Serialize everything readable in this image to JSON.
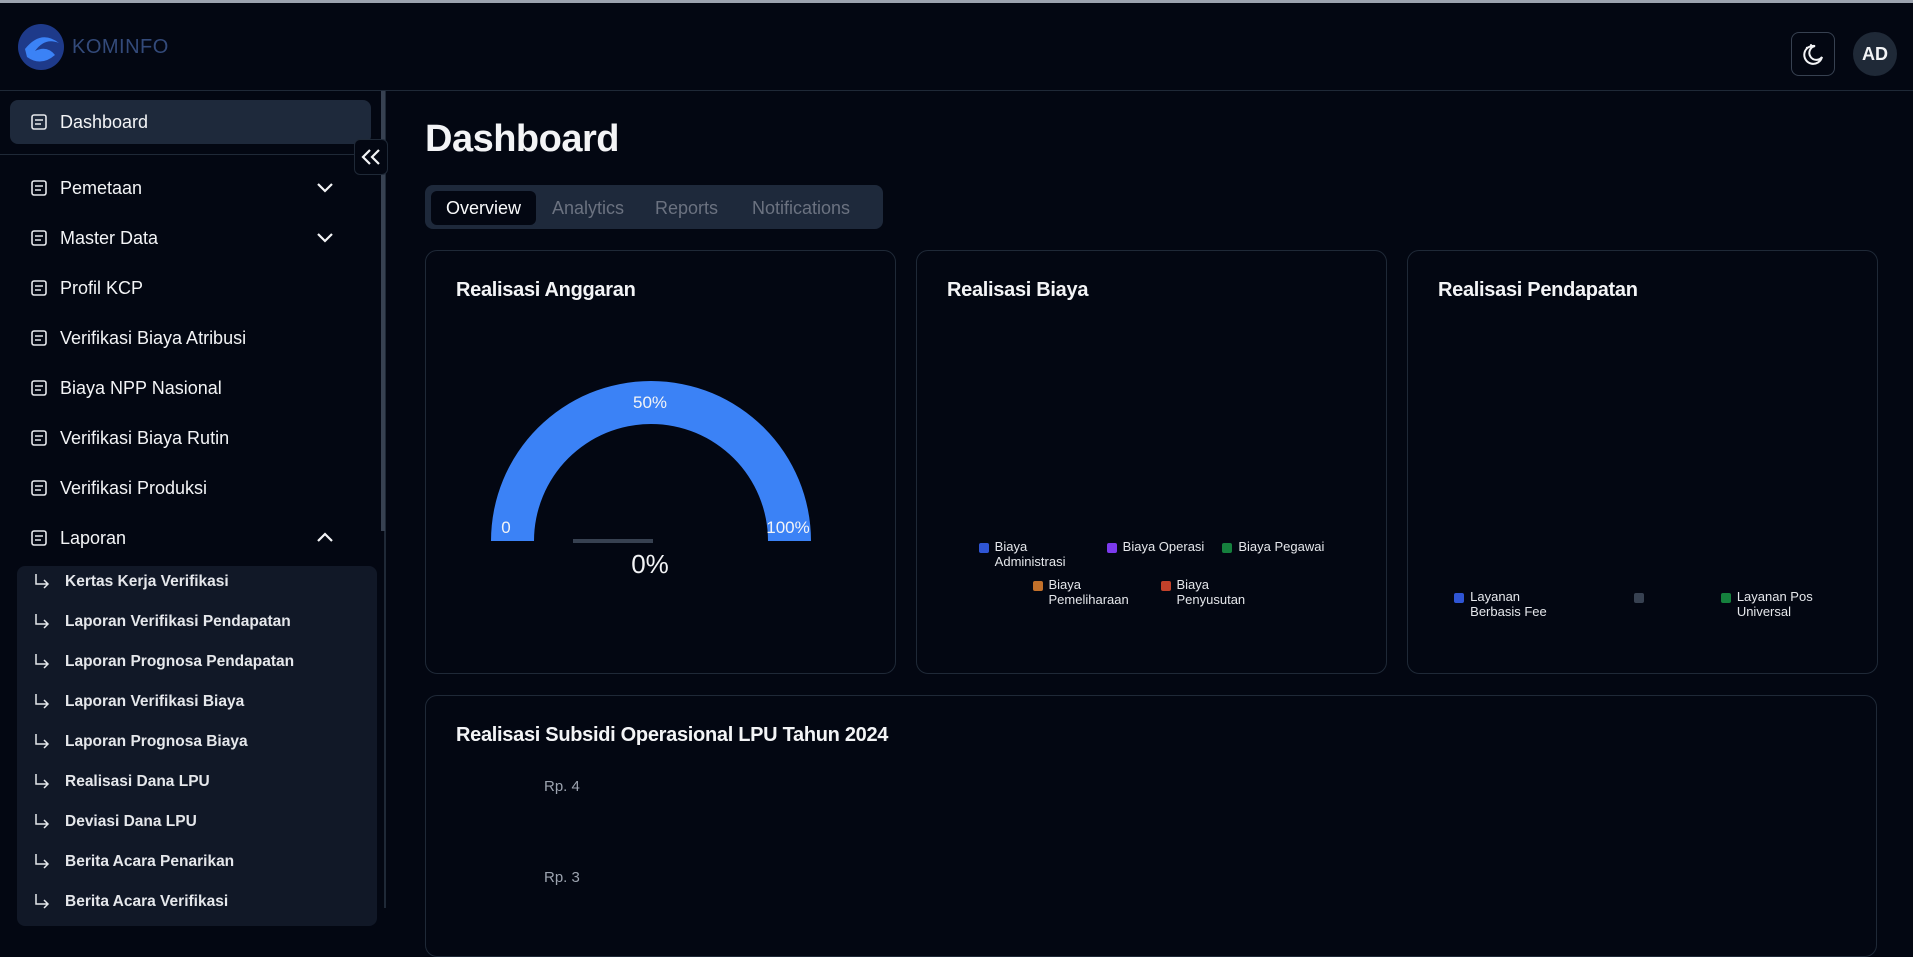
{
  "header": {
    "logo": "KOMINFO",
    "avatar": "AD"
  },
  "sidebar": {
    "items": [
      {
        "label": "Dashboard",
        "active": true
      },
      {
        "label": "Pemetaan",
        "chevron": "down"
      },
      {
        "label": "Master Data",
        "chevron": "down"
      },
      {
        "label": "Profil KCP"
      },
      {
        "label": "Verifikasi Biaya Atribusi"
      },
      {
        "label": "Biaya NPP Nasional"
      },
      {
        "label": "Verifikasi Biaya Rutin"
      },
      {
        "label": "Verifikasi Produksi"
      },
      {
        "label": "Laporan",
        "chevron": "up"
      }
    ],
    "subitems": [
      "Kertas Kerja Verifikasi",
      "Laporan Verifikasi Pendapatan",
      "Laporan Prognosa Pendapatan",
      "Laporan Verifikasi Biaya",
      "Laporan Prognosa Biaya",
      "Realisasi Dana LPU",
      "Deviasi Dana LPU",
      "Berita Acara Penarikan",
      "Berita Acara Verifikasi"
    ]
  },
  "main": {
    "title": "Dashboard",
    "tabs": [
      "Overview",
      "Analytics",
      "Reports",
      "Notifications"
    ],
    "cards": [
      {
        "title": "Realisasi Anggaran",
        "gauge": {
          "min": "0",
          "mid": "50%",
          "max": "100%",
          "value": "0%"
        }
      },
      {
        "title": "Realisasi Biaya",
        "legend": [
          {
            "name": "Biaya Administrasi",
            "color": "#2f55d4"
          },
          {
            "name": "Biaya Operasi",
            "color": "#7c3aed"
          },
          {
            "name": "Biaya Pegawai",
            "color": "#15803d"
          },
          {
            "name": "Biaya Pemeliharaan",
            "color": "#c2702a"
          },
          {
            "name": "Biaya Penyusutan",
            "color": "#c2412a"
          }
        ]
      },
      {
        "title": "Realisasi Pendapatan",
        "legend": [
          {
            "name": "Layanan Berbasis Fee",
            "color": "#2f55d4"
          },
          {
            "color": "#374151"
          },
          {
            "name": "Layanan Pos Universal",
            "color": "#15803d"
          }
        ]
      }
    ],
    "wide_card": {
      "title": "Realisasi Subsidi Operasional LPU Tahun 2024",
      "y_labels": [
        "Rp. 4",
        "Rp. 3"
      ]
    }
  }
}
